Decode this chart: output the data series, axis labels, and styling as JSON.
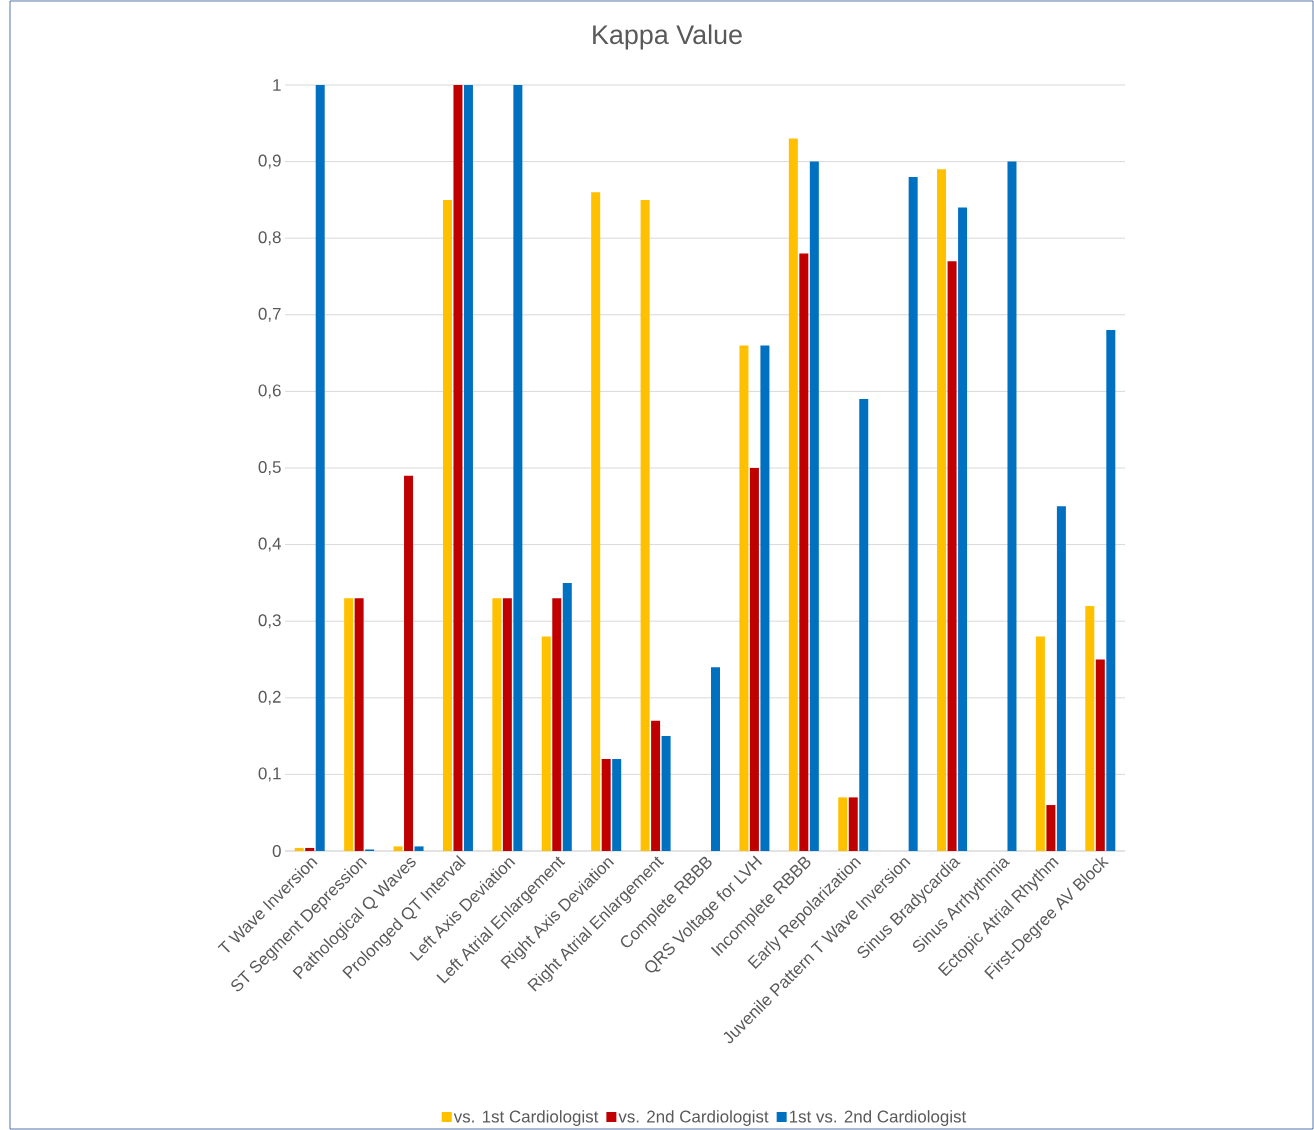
{
  "chart_data": {
    "type": "bar",
    "title": "Kappa Value",
    "categories": [
      "T Wave Inversion",
      "ST Segment Depression",
      "Pathological Q Waves",
      "Prolonged QT Interval",
      "Left Axis Deviation",
      "Left Atrial Enlargement",
      "Right Axis Deviation",
      "Right Atrial Enlargement",
      "Complete RBBB",
      "QRS Voltage for LVH",
      "Incomplete RBBB",
      "Early Repolarization",
      "Juvenile Pattern T Wave Inversion",
      "Sinus Bradycardia",
      "Sinus Arrhythmia",
      "Ectopic Atrial Rhythm",
      "First-Degree AV Block"
    ],
    "series": [
      {
        "name": "vs.  1st Cardiologist",
        "color": "#ffc000",
        "values": [
          0.004,
          0.33,
          0.006,
          0.85,
          0.33,
          0.28,
          0.86,
          0.85,
          null,
          0.66,
          0.93,
          0.07,
          null,
          0.89,
          null,
          0.28,
          0.32
        ]
      },
      {
        "name": "vs. 2nd Cardiologist",
        "color": "#c00000",
        "values": [
          0.004,
          0.33,
          0.49,
          1,
          0.33,
          0.33,
          0.12,
          0.17,
          null,
          0.5,
          0.78,
          0.07,
          null,
          0.77,
          null,
          0.06,
          0.25
        ]
      },
      {
        "name": "1st vs. 2nd Cardiologist",
        "color": "#0070c0",
        "values": [
          1,
          0.002,
          0.006,
          1,
          1,
          0.35,
          0.12,
          0.15,
          0.24,
          0.66,
          0.9,
          0.59,
          0.88,
          0.84,
          0.9,
          0.45,
          0.68
        ]
      }
    ],
    "ylim": [
      0,
      1
    ],
    "yticks": [
      0,
      {
        "value": 0.1,
        "label": "0,1"
      },
      {
        "value": 0.2,
        "label": "0,2"
      },
      {
        "value": 0.3,
        "label": "0,3"
      },
      {
        "value": 0.4,
        "label": "0,4"
      },
      {
        "value": 0.5,
        "label": "0,5"
      },
      {
        "value": 0.6,
        "label": "0,6"
      },
      {
        "value": 0.7,
        "label": "0,7"
      },
      {
        "value": 0.8,
        "label": "0,8"
      },
      {
        "value": 0.9,
        "label": "0,9"
      },
      1
    ],
    "grid": "y",
    "legend": "bottom"
  }
}
